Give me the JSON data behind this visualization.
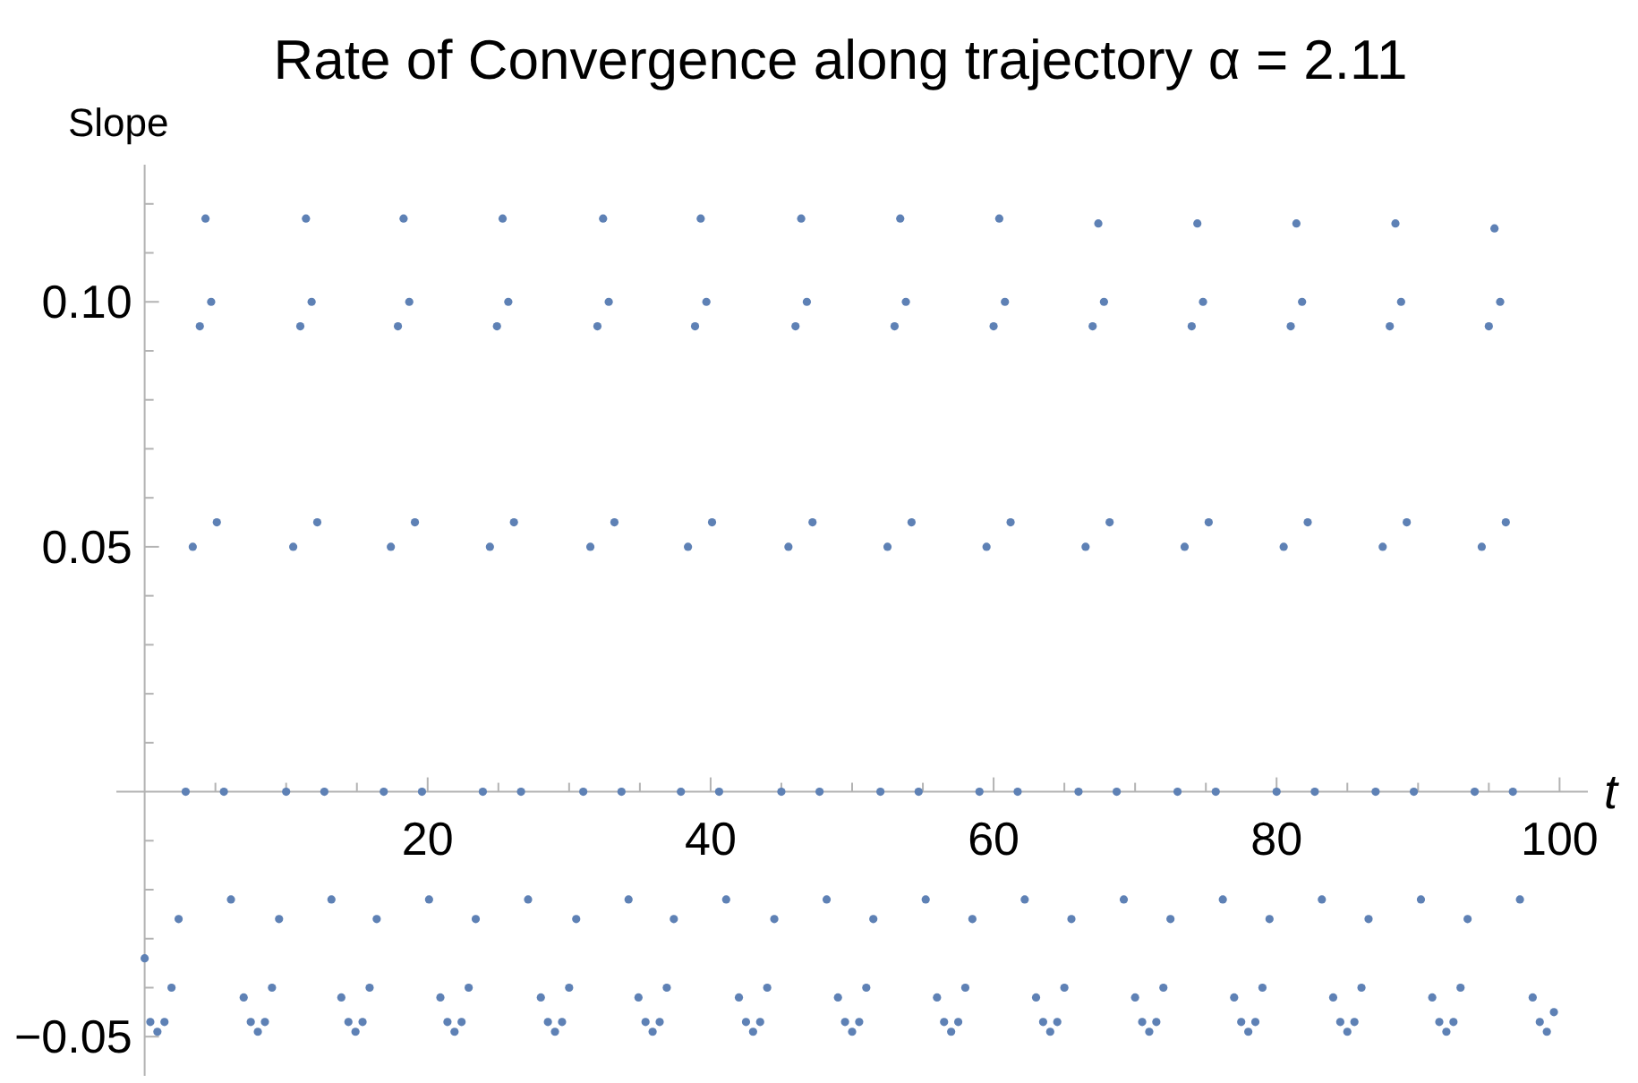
{
  "chart_data": {
    "type": "scatter",
    "title": "Rate of Convergence along trajectory α = 2.11",
    "xlabel": "t",
    "ylabel": "Slope",
    "marker": "circle",
    "xlim": [
      -2,
      102
    ],
    "ylim": [
      -0.058,
      0.128
    ],
    "xticks": [
      {
        "value": 5,
        "label": null
      },
      {
        "value": 10,
        "label": null
      },
      {
        "value": 15,
        "label": null
      },
      20,
      {
        "value": 25,
        "label": null
      },
      {
        "value": 30,
        "label": null
      },
      {
        "value": 35,
        "label": null
      },
      40,
      {
        "value": 45,
        "label": null
      },
      {
        "value": 50,
        "label": null
      },
      {
        "value": 55,
        "label": null
      },
      60,
      {
        "value": 65,
        "label": null
      },
      {
        "value": 70,
        "label": null
      },
      {
        "value": 75,
        "label": null
      },
      80,
      {
        "value": 85,
        "label": null
      },
      {
        "value": 90,
        "label": null
      },
      {
        "value": 95,
        "label": null
      },
      100
    ],
    "yticks": [
      {
        "value": -0.05,
        "label": "−0.05"
      },
      {
        "value": -0.04,
        "label": null
      },
      {
        "value": -0.03,
        "label": null
      },
      {
        "value": -0.02,
        "label": null
      },
      {
        "value": -0.01,
        "label": null
      },
      {
        "value": 0.01,
        "label": null
      },
      {
        "value": 0.02,
        "label": null
      },
      {
        "value": 0.03,
        "label": null
      },
      {
        "value": 0.04,
        "label": null
      },
      {
        "value": 0.05,
        "label": "0.05"
      },
      {
        "value": 0.06,
        "label": null
      },
      {
        "value": 0.07,
        "label": null
      },
      {
        "value": 0.08,
        "label": null
      },
      {
        "value": 0.09,
        "label": null
      },
      {
        "value": 0.1,
        "label": "0.10"
      },
      {
        "value": 0.11,
        "label": null
      },
      {
        "value": 0.12,
        "label": null
      }
    ],
    "series": [
      {
        "color": "#5e81b5",
        "x": [
          0,
          0.4,
          0.9,
          1.4,
          1.9,
          2.4,
          2.9,
          3.4,
          3.9,
          4.3,
          4.7,
          5.1,
          5.6,
          6.1,
          7.0,
          7.5,
          8.0,
          8.5,
          9.0,
          9.5,
          10.0,
          10.5,
          11.0,
          11.4,
          11.8,
          12.2,
          12.7,
          13.2,
          13.9,
          14.4,
          14.9,
          15.4,
          15.9,
          16.4,
          16.9,
          17.4,
          17.9,
          18.3,
          18.7,
          19.1,
          19.6,
          20.1,
          20.9,
          21.4,
          21.9,
          22.4,
          22.9,
          23.4,
          23.9,
          24.4,
          24.9,
          25.3,
          25.7,
          26.1,
          26.6,
          27.1,
          28.0,
          28.5,
          29.0,
          29.5,
          30.0,
          30.5,
          31.0,
          31.5,
          32.0,
          32.4,
          32.8,
          33.2,
          33.7,
          34.2,
          34.9,
          35.4,
          35.9,
          36.4,
          36.9,
          37.4,
          37.9,
          38.4,
          38.9,
          39.3,
          39.7,
          40.1,
          40.6,
          41.1,
          42.0,
          42.5,
          43.0,
          43.5,
          44.0,
          44.5,
          45.0,
          45.5,
          46.0,
          46.4,
          46.8,
          47.2,
          47.7,
          48.2,
          49.0,
          49.5,
          50.0,
          50.5,
          51.0,
          51.5,
          52.0,
          52.5,
          53.0,
          53.4,
          53.8,
          54.2,
          54.7,
          55.2,
          56.0,
          56.5,
          57.0,
          57.5,
          58.0,
          58.5,
          59.0,
          59.5,
          60.0,
          60.4,
          60.8,
          61.2,
          61.7,
          62.2,
          63.0,
          63.5,
          64.0,
          64.5,
          65.0,
          65.5,
          66.0,
          66.5,
          67.0,
          67.4,
          67.8,
          68.2,
          68.7,
          69.2,
          70.0,
          70.5,
          71.0,
          71.5,
          72.0,
          72.5,
          73.0,
          73.5,
          74.0,
          74.4,
          74.8,
          75.2,
          75.7,
          76.2,
          77.0,
          77.5,
          78.0,
          78.5,
          79.0,
          79.5,
          80.0,
          80.5,
          81.0,
          81.4,
          81.8,
          82.2,
          82.7,
          83.2,
          84.0,
          84.5,
          85.0,
          85.5,
          86.0,
          86.5,
          87.0,
          87.5,
          88.0,
          88.4,
          88.8,
          89.2,
          89.7,
          90.2,
          91.0,
          91.5,
          92.0,
          92.5,
          93.0,
          93.5,
          94.0,
          94.5,
          95.0,
          95.4,
          95.8,
          96.2,
          96.7,
          97.2,
          98.1,
          98.6,
          99.1,
          99.6
        ],
        "values": [
          -0.034,
          -0.047,
          -0.049,
          -0.047,
          -0.04,
          -0.026,
          0,
          0.05,
          0.095,
          0.117,
          0.1,
          0.055,
          0,
          -0.022,
          -0.042,
          -0.047,
          -0.049,
          -0.047,
          -0.04,
          -0.026,
          0,
          0.05,
          0.095,
          0.117,
          0.1,
          0.055,
          0,
          -0.022,
          -0.042,
          -0.047,
          -0.049,
          -0.047,
          -0.04,
          -0.026,
          0,
          0.05,
          0.095,
          0.117,
          0.1,
          0.055,
          0,
          -0.022,
          -0.042,
          -0.047,
          -0.049,
          -0.047,
          -0.04,
          -0.026,
          0,
          0.05,
          0.095,
          0.117,
          0.1,
          0.055,
          0,
          -0.022,
          -0.042,
          -0.047,
          -0.049,
          -0.047,
          -0.04,
          -0.026,
          0,
          0.05,
          0.095,
          0.117,
          0.1,
          0.055,
          0,
          -0.022,
          -0.042,
          -0.047,
          -0.049,
          -0.047,
          -0.04,
          -0.026,
          0,
          0.05,
          0.095,
          0.117,
          0.1,
          0.055,
          0,
          -0.022,
          -0.042,
          -0.047,
          -0.049,
          -0.047,
          -0.04,
          -0.026,
          0,
          0.05,
          0.095,
          0.117,
          0.1,
          0.055,
          0,
          -0.022,
          -0.042,
          -0.047,
          -0.049,
          -0.047,
          -0.04,
          -0.026,
          0,
          0.05,
          0.095,
          0.117,
          0.1,
          0.055,
          0,
          -0.022,
          -0.042,
          -0.047,
          -0.049,
          -0.047,
          -0.04,
          -0.026,
          0,
          0.05,
          0.095,
          0.117,
          0.1,
          0.055,
          0,
          -0.022,
          -0.042,
          -0.047,
          -0.049,
          -0.047,
          -0.04,
          -0.026,
          0,
          0.05,
          0.095,
          0.116,
          0.1,
          0.055,
          0,
          -0.022,
          -0.042,
          -0.047,
          -0.049,
          -0.047,
          -0.04,
          -0.026,
          0,
          0.05,
          0.095,
          0.116,
          0.1,
          0.055,
          0,
          -0.022,
          -0.042,
          -0.047,
          -0.049,
          -0.047,
          -0.04,
          -0.026,
          0,
          0.05,
          0.095,
          0.116,
          0.1,
          0.055,
          0,
          -0.022,
          -0.042,
          -0.047,
          -0.049,
          -0.047,
          -0.04,
          -0.026,
          0,
          0.05,
          0.095,
          0.116,
          0.1,
          0.055,
          0,
          -0.022,
          -0.042,
          -0.047,
          -0.049,
          -0.047,
          -0.04,
          -0.026,
          0,
          0.05,
          0.095,
          0.115,
          0.1,
          0.055,
          0,
          -0.022,
          -0.042,
          -0.047,
          -0.049,
          -0.045
        ]
      }
    ]
  }
}
